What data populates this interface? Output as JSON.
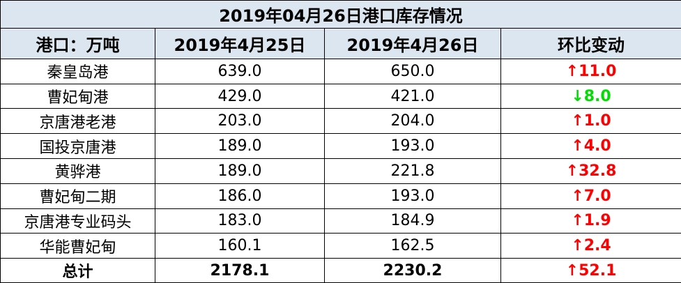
{
  "title": "2019年04月26日港口库存情况",
  "header": [
    "港口：万吨",
    "2019年4月25日",
    "2019年4月26日",
    "环比变动"
  ],
  "rows": [
    {
      "port": "秦皇岛港",
      "prev": "639.0",
      "curr": "650.0",
      "change": "↑11.0",
      "color": "#ff0000"
    },
    {
      "port": "曹妃甸港",
      "prev": "429.0",
      "curr": "421.0",
      "change": "↓8.0",
      "color": "#00dd00"
    },
    {
      "port": "京唐港老港",
      "prev": "203.0",
      "curr": "204.0",
      "change": "↑1.0",
      "color": "#ff0000"
    },
    {
      "port": "国投京唐港",
      "prev": "189.0",
      "curr": "193.0",
      "change": "↑4.0",
      "color": "#ff0000"
    },
    {
      "port": "黄骅港",
      "prev": "189.0",
      "curr": "221.8",
      "change": "↑32.8",
      "color": "#ff0000"
    },
    {
      "port": "曹妃甸二期",
      "prev": "186.0",
      "curr": "193.0",
      "change": "↑7.0",
      "color": "#ff0000"
    },
    {
      "port": "京唐港专业码头",
      "prev": "183.0",
      "curr": "184.9",
      "change": "↑1.9",
      "color": "#ff0000"
    },
    {
      "port": "华能曹妃甸",
      "prev": "160.1",
      "curr": "162.5",
      "change": "↑2.4",
      "color": "#ff0000"
    }
  ],
  "total": {
    "port": "总计",
    "prev": "2178.1",
    "curr": "2230.2",
    "change": "↑52.1",
    "color": "#ff0000"
  }
}
